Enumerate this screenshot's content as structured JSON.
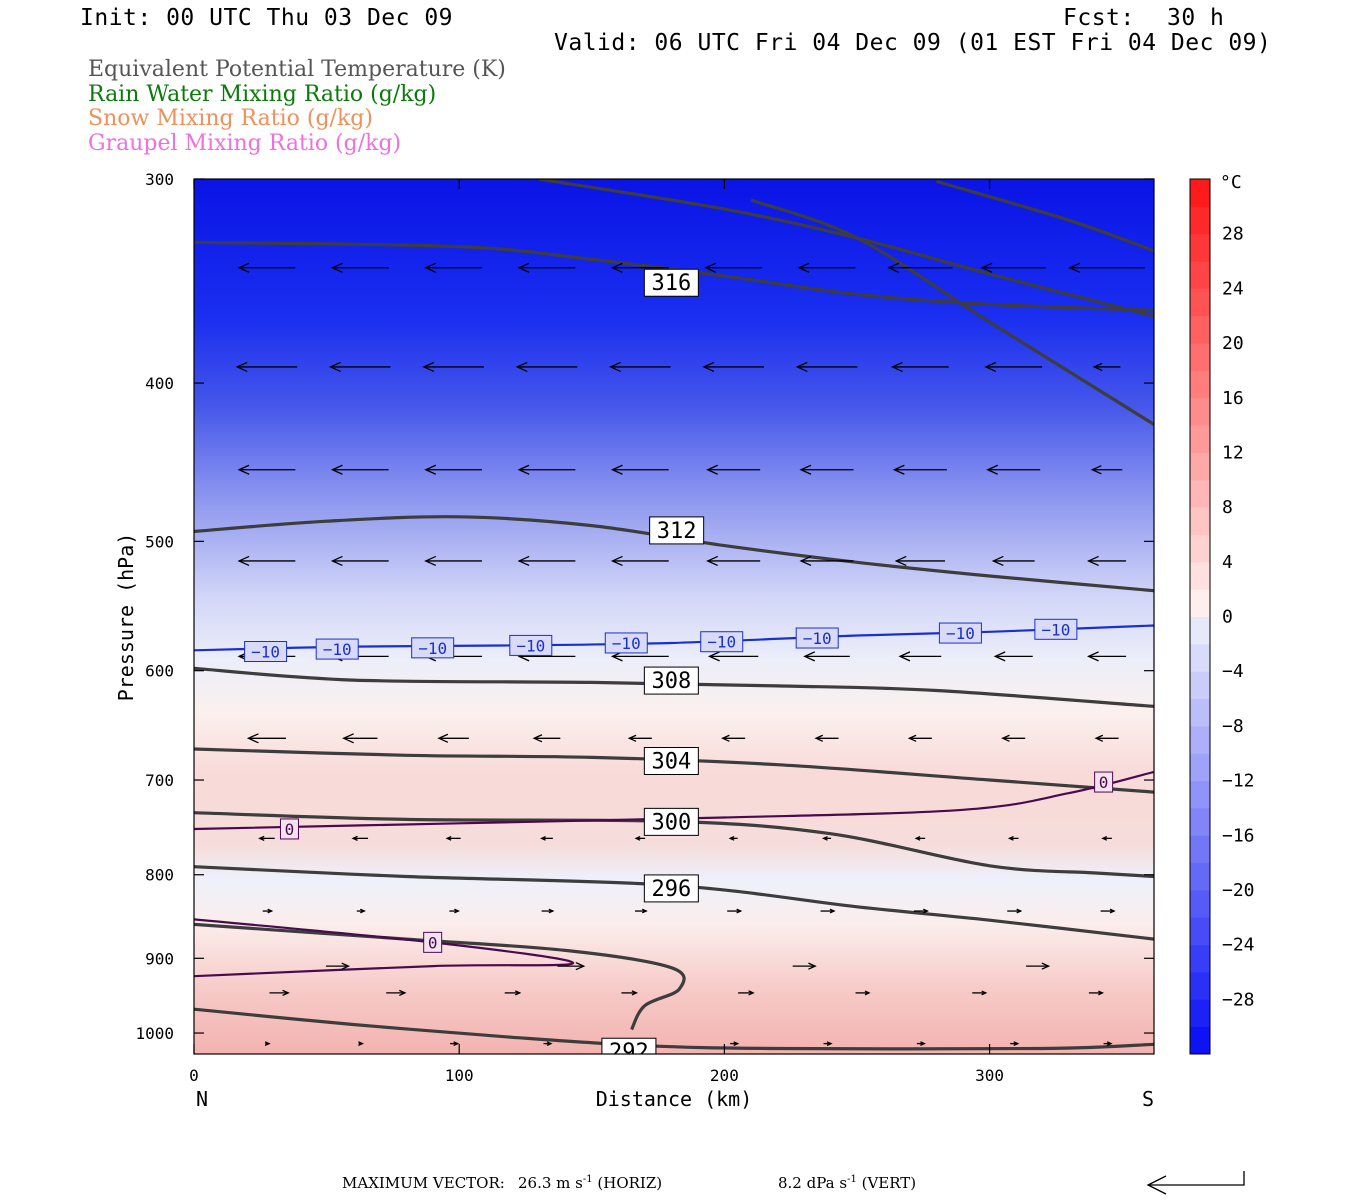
{
  "header": {
    "init": "Init: 00 UTC Thu 03 Dec 09",
    "fcst_label": "Fcst:",
    "fcst_value": "30 h",
    "valid": "Valid: 06 UTC Fri 04 Dec 09 (01 EST Fri 04 Dec 09)"
  },
  "legend": [
    {
      "label": "Equivalent Potential Temperature (K)",
      "color": "#555555"
    },
    {
      "label": "Rain Water Mixing Ratio (g/kg)",
      "color": "#0b7a0b"
    },
    {
      "label": "Snow Mixing Ratio (g/kg)",
      "color": "#f0905a"
    },
    {
      "label": "Graupel Mixing Ratio (g/kg)",
      "color": "#ee70e0"
    }
  ],
  "footer": {
    "max_vector_label": "MAXIMUM VECTOR:",
    "horiz_value": "26.3 m s",
    "horiz_sup": "-1",
    "horiz_tag": "(HORIZ)",
    "vert_value": "8.2 dPa s",
    "vert_sup": "-1",
    "vert_tag": "(VERT)"
  },
  "chart_data": {
    "type": "contour",
    "xlabel": "Distance (km)",
    "ylabel": "Pressure (hPa)",
    "xlim": [
      0,
      362
    ],
    "ylim": [
      1030,
      300
    ],
    "y_log": true,
    "x_ticks": [
      0,
      100,
      200,
      300
    ],
    "x_tick_labels": [
      "0",
      "100",
      "200",
      "300"
    ],
    "x_endpoints": {
      "left": "N",
      "right": "S"
    },
    "y_ticks": [
      300,
      400,
      500,
      600,
      700,
      800,
      900,
      1000
    ],
    "y_tick_labels": [
      "300",
      "400",
      "500",
      "600",
      "700",
      "800",
      "900",
      "1000"
    ],
    "colorbar": {
      "unit": "°C",
      "tick_values": [
        28,
        24,
        20,
        16,
        12,
        8,
        4,
        0,
        -4,
        -8,
        -12,
        -16,
        -20,
        -24,
        -28
      ],
      "tick_labels": [
        "28",
        "24",
        "20",
        "16",
        "12",
        "8",
        "4",
        "0",
        "−4",
        "−8",
        "−12",
        "−16",
        "−20",
        "−24",
        "−28"
      ],
      "range": [
        -32,
        32
      ]
    },
    "theta_e_contours": [
      {
        "label": "316",
        "label_at": [
          180,
          347
        ],
        "points": [
          [
            0,
            328
          ],
          [
            100,
            330
          ],
          [
            150,
            336
          ],
          [
            200,
            344
          ],
          [
            250,
            353
          ],
          [
            300,
            358
          ],
          [
            362,
            361
          ]
        ]
      },
      {
        "label": "",
        "label_at": null,
        "points": [
          [
            130,
            300
          ],
          [
            200,
            313
          ],
          [
            250,
            326
          ],
          [
            300,
            343
          ],
          [
            362,
            364
          ]
        ]
      },
      {
        "label": "",
        "label_at": null,
        "points": [
          [
            210,
            309
          ],
          [
            250,
            326
          ],
          [
            300,
            367
          ],
          [
            362,
            424
          ]
        ]
      },
      {
        "label": "",
        "label_at": null,
        "points": [
          [
            280,
            301
          ],
          [
            330,
            318
          ],
          [
            362,
            332
          ]
        ]
      },
      {
        "label": "312",
        "label_at": [
          182,
          492
        ],
        "points": [
          [
            0,
            493
          ],
          [
            50,
            486
          ],
          [
            100,
            483
          ],
          [
            150,
            489
          ],
          [
            200,
            503
          ],
          [
            250,
            515
          ],
          [
            300,
            525
          ],
          [
            362,
            536
          ]
        ]
      },
      {
        "label": "308",
        "label_at": [
          180,
          608
        ],
        "points": [
          [
            0,
            598
          ],
          [
            60,
            608
          ],
          [
            150,
            610
          ],
          [
            220,
            613
          ],
          [
            280,
            617
          ],
          [
            362,
            631
          ]
        ]
      },
      {
        "label": "304",
        "label_at": [
          180,
          681
        ],
        "points": [
          [
            0,
            670
          ],
          [
            80,
            676
          ],
          [
            150,
            678
          ],
          [
            220,
            685
          ],
          [
            300,
            700
          ],
          [
            362,
            712
          ]
        ]
      },
      {
        "label": "300",
        "label_at": [
          180,
          742
        ],
        "points": [
          [
            0,
            733
          ],
          [
            80,
            740
          ],
          [
            180,
            742
          ],
          [
            240,
            755
          ],
          [
            300,
            790
          ],
          [
            340,
            798
          ],
          [
            362,
            802
          ]
        ]
      },
      {
        "label": "296",
        "label_at": [
          180,
          815
        ],
        "points": [
          [
            0,
            791
          ],
          [
            80,
            802
          ],
          [
            180,
            812
          ],
          [
            250,
            837
          ],
          [
            300,
            853
          ],
          [
            362,
            876
          ]
        ]
      },
      {
        "label": "",
        "label_at": null,
        "points": [
          [
            0,
            858
          ],
          [
            80,
            876
          ],
          [
            140,
            890
          ],
          [
            180,
            912
          ],
          [
            183,
            940
          ],
          [
            170,
            962
          ],
          [
            165,
            995
          ]
        ]
      },
      {
        "label": "292",
        "label_at": [
          164,
          1026
        ],
        "points": [
          [
            0,
            967
          ],
          [
            60,
            988
          ],
          [
            120,
            1006
          ],
          [
            170,
            1018
          ],
          [
            220,
            1022
          ],
          [
            320,
            1022
          ],
          [
            362,
            1016
          ]
        ]
      }
    ],
    "temperature_contours": [
      {
        "label": "−10",
        "color": "#1a2fd0",
        "label_positions": [
          [
            27,
            584
          ],
          [
            54,
            582
          ],
          [
            90,
            581
          ],
          [
            127,
            579
          ],
          [
            163,
            577
          ],
          [
            199,
            576
          ],
          [
            235,
            573
          ],
          [
            289,
            569
          ],
          [
            325,
            566
          ]
        ],
        "points": [
          [
            0,
            583
          ],
          [
            60,
            580
          ],
          [
            120,
            579
          ],
          [
            180,
            577
          ],
          [
            250,
            571
          ],
          [
            300,
            568
          ],
          [
            362,
            563
          ]
        ]
      },
      {
        "label": "0",
        "color": "#4a0a50",
        "label_positions": [
          [
            36,
            750
          ],
          [
            90,
            880
          ],
          [
            343,
            702
          ]
        ],
        "points": [
          [
            0,
            750
          ],
          [
            100,
            744
          ],
          [
            200,
            738
          ],
          [
            290,
            730
          ],
          [
            330,
            713
          ],
          [
            362,
            692
          ]
        ]
      },
      {
        "label": "",
        "color": "#4a0a50",
        "label_positions": [],
        "points": [
          [
            0,
            852
          ],
          [
            90,
            880
          ],
          [
            143,
            906
          ],
          [
            90,
            910
          ],
          [
            0,
            923
          ]
        ]
      }
    ],
    "wind_vectors": {
      "description": "horizontal (left-pointing arrows aloft, right-pointing arrows near surface)",
      "rows": [
        {
          "p": 340,
          "u": -1.0,
          "lengths": [
            0.75,
            0.75,
            0.75,
            0.75,
            0.75,
            0.75,
            0.75,
            0.85,
            0.85,
            1.0
          ]
        },
        {
          "p": 391,
          "u": -1.0,
          "lengths": [
            0.8,
            0.8,
            0.8,
            0.8,
            0.8,
            0.8,
            0.8,
            0.75,
            0.75,
            0.35
          ]
        },
        {
          "p": 452,
          "u": -1.0,
          "lengths": [
            0.75,
            0.75,
            0.75,
            0.75,
            0.75,
            0.7,
            0.7,
            0.7,
            0.7,
            0.4
          ]
        },
        {
          "p": 514,
          "u": -1.0,
          "lengths": [
            0.75,
            0.75,
            0.75,
            0.75,
            0.75,
            0.7,
            0.7,
            0.65,
            0.55,
            0.5
          ]
        },
        {
          "p": 588,
          "u": -1.0,
          "lengths": [
            0.75,
            0.75,
            0.75,
            0.75,
            0.75,
            0.65,
            0.6,
            0.55,
            0.5,
            0.5
          ]
        },
        {
          "p": 660,
          "u": -1.0,
          "lengths": [
            0.5,
            0.45,
            0.4,
            0.35,
            0.3,
            0.3,
            0.3,
            0.3,
            0.3,
            0.3
          ]
        },
        {
          "p": 760,
          "u": -0.5,
          "lengths": [
            0.2,
            0.2,
            0.18,
            0.15,
            0.12,
            0.1,
            0.1,
            0.12,
            0.12,
            0.12
          ]
        },
        {
          "p": 842,
          "u": 0.5,
          "lengths": [
            0.12,
            0.1,
            0.12,
            0.15,
            0.15,
            0.18,
            0.18,
            0.18,
            0.18,
            0.18
          ]
        },
        {
          "p": 910,
          "u": 1.0,
          "lengths": [
            0.3,
            0.35,
            0.3,
            0.3
          ]
        },
        {
          "p": 945,
          "u": 1.0,
          "lengths": [
            0.25,
            0.25,
            0.2,
            0.2,
            0.2,
            0.18,
            0.18,
            0.18
          ]
        },
        {
          "p": 1015,
          "u": 1.0,
          "lengths": [
            0.05,
            0.05,
            0.1,
            0.1,
            0.1,
            0.1,
            0.1,
            0.1,
            0.1,
            0.1
          ]
        }
      ]
    }
  }
}
